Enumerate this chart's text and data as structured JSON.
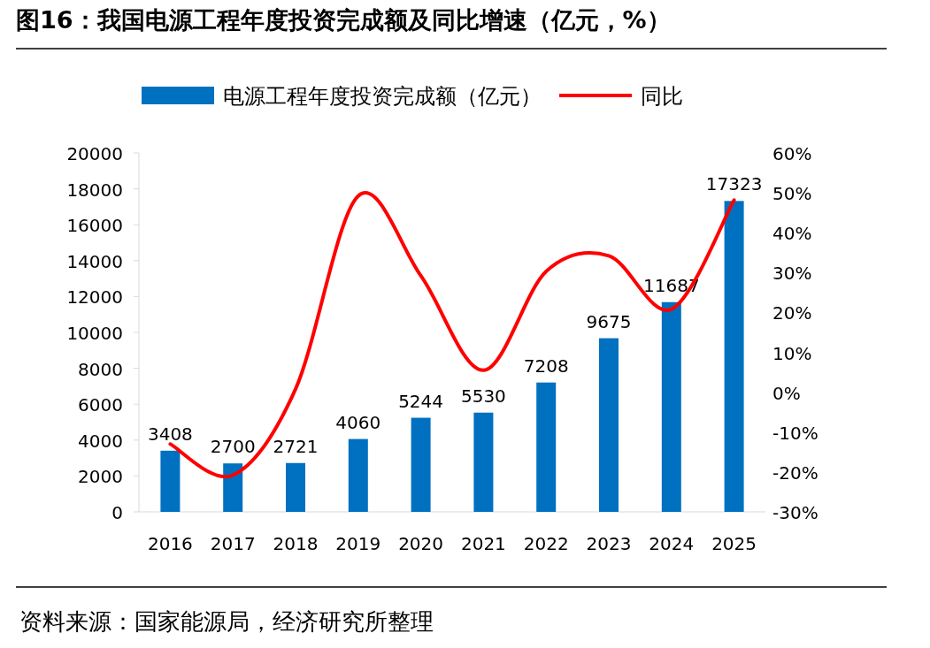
{
  "chart_data": {
    "type": "bar",
    "title": "图16：我国电源工程年度投资完成额及同比增速（亿元，%）",
    "categories": [
      "2016",
      "2017",
      "2018",
      "2019",
      "2020",
      "2021",
      "2022",
      "2023",
      "2024",
      "2025"
    ],
    "series": [
      {
        "name": "电源工程年度投资完成额（亿元）",
        "color": "#0070c0",
        "values": [
          3408,
          2700,
          2721,
          4060,
          5244,
          5530,
          7208,
          9675,
          11687,
          17323
        ],
        "value_labels": [
          "3408",
          "2700",
          "2721",
          "4060",
          "5244",
          "5530",
          "7208",
          "9675",
          "11687",
          "17323"
        ]
      },
      {
        "name": "同比",
        "type": "line",
        "axis": "y2",
        "color": "#ff0000",
        "values": [
          -13,
          -20.8,
          0.8,
          49.2,
          29.2,
          5.5,
          30.3,
          34.2,
          20.8,
          48.2
        ]
      }
    ],
    "ylim": [
      0,
      20000
    ],
    "yticks": [
      0,
      2000,
      4000,
      6000,
      8000,
      10000,
      12000,
      14000,
      16000,
      18000,
      20000
    ],
    "y2lim": [
      -30,
      60
    ],
    "y2ticks": [
      {
        "value": -30,
        "label": "-30%"
      },
      {
        "value": -20,
        "label": "-20%"
      },
      {
        "value": -10,
        "label": "-10%"
      },
      {
        "value": 0,
        "label": "0%"
      },
      {
        "value": 10,
        "label": "10%"
      },
      {
        "value": 20,
        "label": "20%"
      },
      {
        "value": 30,
        "label": "30%"
      },
      {
        "value": 40,
        "label": "40%"
      },
      {
        "value": 50,
        "label": "50%"
      },
      {
        "value": 60,
        "label": "60%"
      }
    ],
    "legend": "top",
    "grid": false,
    "line_style": "solid",
    "annotations": [
      "资料来源：国家能源局，经济研究所整理"
    ]
  }
}
